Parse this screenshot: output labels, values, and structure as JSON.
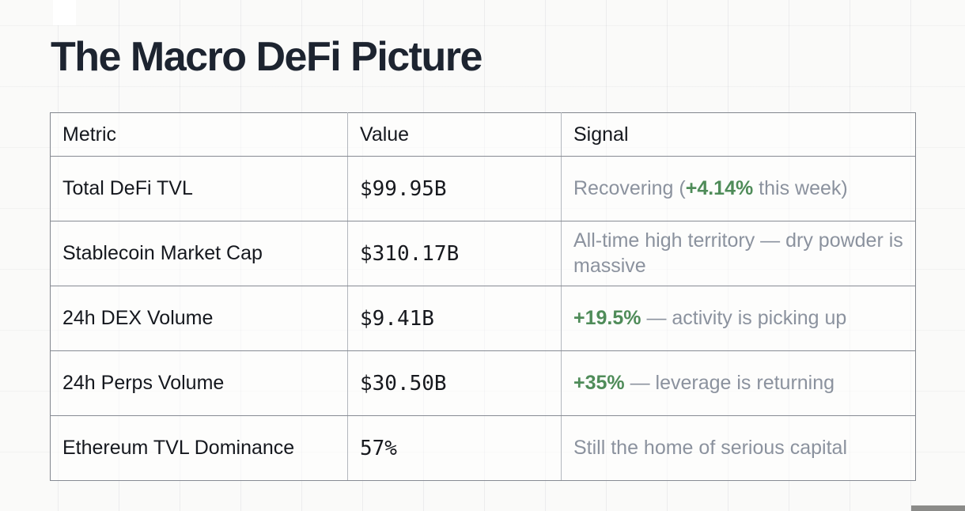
{
  "page": {
    "title": "The Macro DeFi Picture"
  },
  "colors": {
    "accent_green": "#4f8c59",
    "signal_gray": "#8b929e",
    "title_ink": "#1d2430",
    "table_border": "#82868e"
  },
  "table": {
    "columns": [
      "Metric",
      "Value",
      "Signal"
    ],
    "rows": [
      {
        "metric": "Total DeFi TVL",
        "value": "$99.95B",
        "signal_prefix": "Recovering (",
        "signal_highlight": "+4.14%",
        "signal_suffix": " this week)"
      },
      {
        "metric": "Stablecoin Market Cap",
        "value": "$310.17B",
        "signal_prefix": "All-time high territory — dry powder is massive",
        "signal_highlight": "",
        "signal_suffix": ""
      },
      {
        "metric": "24h DEX Volume",
        "value": "$9.41B",
        "signal_prefix": "",
        "signal_highlight": "+19.5%",
        "signal_suffix": " — activity is picking up"
      },
      {
        "metric": "24h Perps Volume",
        "value": "$30.50B",
        "signal_prefix": "",
        "signal_highlight": "+35%",
        "signal_suffix": " — leverage is returning"
      },
      {
        "metric": "Ethereum TVL Dominance",
        "value": "57%",
        "signal_prefix": "Still the home of serious capital",
        "signal_highlight": "",
        "signal_suffix": ""
      }
    ]
  }
}
